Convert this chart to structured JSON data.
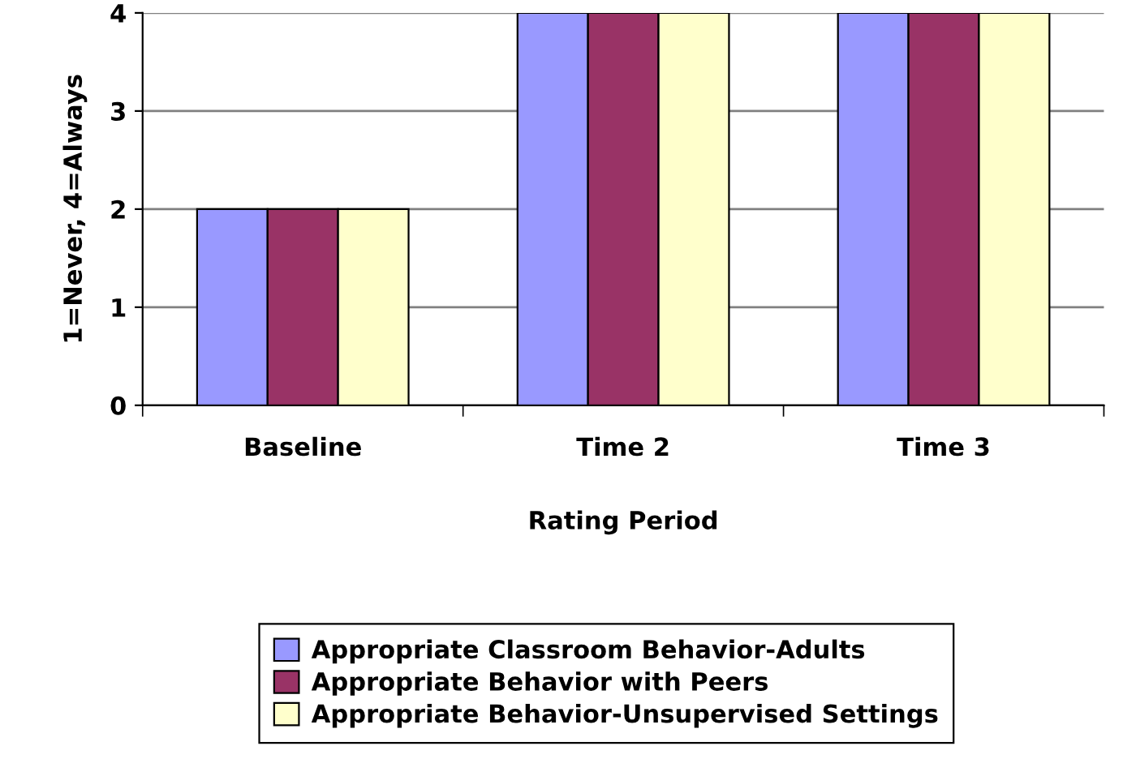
{
  "chart_data": {
    "type": "bar",
    "xlabel": "Rating Period",
    "ylabel": "1=Never, 4=Always",
    "categories": [
      "Baseline",
      "Time 2",
      "Time 3"
    ],
    "series": [
      {
        "name": "Appropriate Classroom Behavior-Adults",
        "color": "#9999ff",
        "values": [
          2,
          4,
          4
        ]
      },
      {
        "name": "Appropriate Behavior with Peers",
        "color": "#993366",
        "values": [
          2,
          4,
          4
        ]
      },
      {
        "name": "Appropriate Behavior-Unsupervised Settings",
        "color": "#ffffcc",
        "values": [
          2,
          4,
          4
        ]
      }
    ],
    "ylim": [
      0,
      4
    ],
    "yticks": [
      0,
      1,
      2,
      3,
      4
    ],
    "grid": "y",
    "legend": "bottom"
  }
}
